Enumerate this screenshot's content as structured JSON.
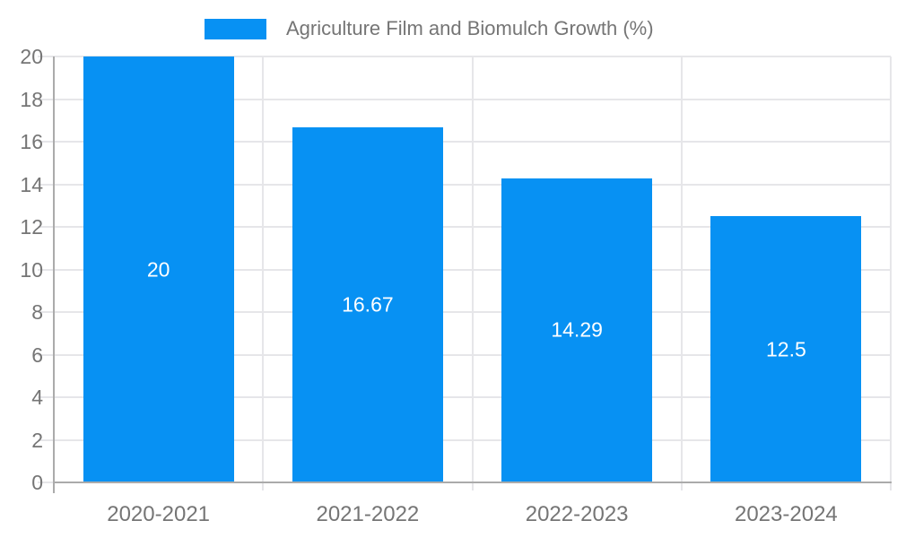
{
  "page": {
    "background": "#ffffff"
  },
  "chart_data": {
    "type": "bar",
    "title": "Agriculture Film and Biomulch Growth (%)",
    "legend": {
      "label": "Agriculture Film and Biomulch Growth (%)",
      "position": "top-center"
    },
    "categories": [
      "2020-2021",
      "2021-2022",
      "2022-2023",
      "2023-2024"
    ],
    "values": [
      20,
      16.67,
      14.29,
      12.5
    ],
    "bar_labels": [
      "20",
      "16.67",
      "14.29",
      "12.5"
    ],
    "xlabel": "",
    "ylabel": "",
    "ylim": [
      0,
      20
    ],
    "y_ticks": [
      0,
      2,
      4,
      6,
      8,
      10,
      12,
      14,
      16,
      18,
      20
    ],
    "grid": true,
    "colors": {
      "bar": "#0791f3",
      "bar_label": "#ffffff",
      "axis_text": "#757575",
      "gridline": "#e6e6e9",
      "axis_line": "#ababab"
    }
  }
}
